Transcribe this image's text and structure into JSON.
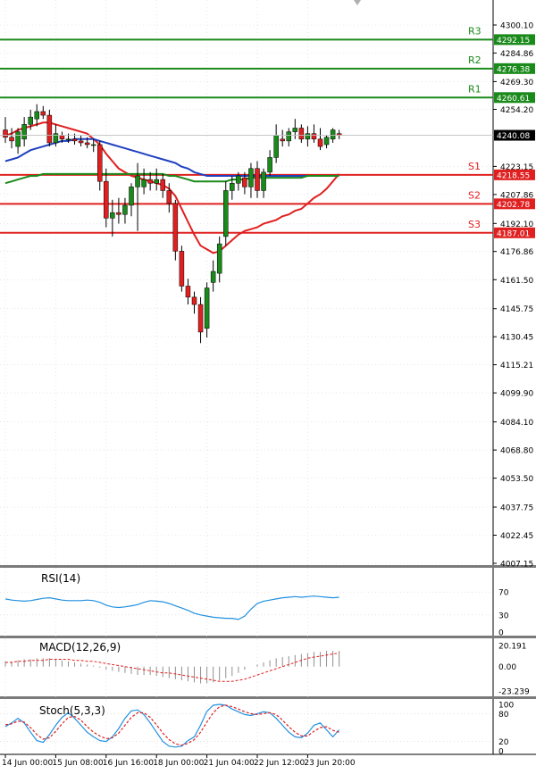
{
  "chart_data": [
    {
      "type": "candlestick",
      "timeframe_note": "",
      "price_axis": {
        "ticks": [
          "4300.10",
          "4284.86",
          "4269.30",
          "4254.20",
          "4223.15",
          "4207.86",
          "4192.10",
          "4176.86",
          "4161.50",
          "4145.75",
          "4130.45",
          "4115.21",
          "4099.90",
          "4084.10",
          "4068.80",
          "4053.50",
          "4037.75",
          "4022.45",
          "4007.15"
        ],
        "tick_values": [
          4300.1,
          4284.86,
          4269.3,
          4254.2,
          4223.15,
          4207.86,
          4192.1,
          4176.86,
          4161.5,
          4145.75,
          4130.45,
          4115.21,
          4099.9,
          4084.1,
          4068.8,
          4053.5,
          4037.75,
          4022.45,
          4007.15
        ],
        "range": [
          4007.15,
          4300.1
        ],
        "current_price": "4240.08",
        "current_value": 4240.08
      },
      "levels": [
        {
          "name": "R3",
          "value": 4292.15,
          "label": "4292.15",
          "color": "#1a8a1a"
        },
        {
          "name": "R2",
          "value": 4276.38,
          "label": "4276.38",
          "color": "#1a8a1a"
        },
        {
          "name": "R1",
          "value": 4260.61,
          "label": "4260.61",
          "color": "#1a8a1a"
        },
        {
          "name": "S1",
          "value": 4218.55,
          "label": "4218.55",
          "color": "#e02020"
        },
        {
          "name": "S2",
          "value": 4202.78,
          "label": "4202.78",
          "color": "#e02020"
        },
        {
          "name": "S3",
          "value": 4187.01,
          "label": "4187.01",
          "color": "#e02020"
        }
      ],
      "candles": [
        {
          "o": 4243,
          "h": 4250,
          "l": 4236,
          "c": 4239
        },
        {
          "o": 4239,
          "h": 4244,
          "l": 4233,
          "c": 4237
        },
        {
          "o": 4234,
          "h": 4244,
          "l": 4230,
          "c": 4242
        },
        {
          "o": 4238,
          "h": 4250,
          "l": 4234,
          "c": 4246
        },
        {
          "o": 4246,
          "h": 4254,
          "l": 4243,
          "c": 4250
        },
        {
          "o": 4249,
          "h": 4257,
          "l": 4245,
          "c": 4253
        },
        {
          "o": 4253,
          "h": 4256,
          "l": 4249,
          "c": 4251
        },
        {
          "o": 4251,
          "h": 4254,
          "l": 4234,
          "c": 4236
        },
        {
          "o": 4236,
          "h": 4246,
          "l": 4234,
          "c": 4241
        },
        {
          "o": 4240,
          "h": 4242,
          "l": 4236,
          "c": 4238
        },
        {
          "o": 4238,
          "h": 4241,
          "l": 4236,
          "c": 4238
        },
        {
          "o": 4238,
          "h": 4241,
          "l": 4235,
          "c": 4237
        },
        {
          "o": 4237,
          "h": 4240,
          "l": 4234,
          "c": 4236
        },
        {
          "o": 4236,
          "h": 4239,
          "l": 4233,
          "c": 4235
        },
        {
          "o": 4235,
          "h": 4238,
          "l": 4231,
          "c": 4235
        },
        {
          "o": 4235,
          "h": 4237,
          "l": 4210,
          "c": 4215
        },
        {
          "o": 4215,
          "h": 4222,
          "l": 4190,
          "c": 4195
        },
        {
          "o": 4195,
          "h": 4205,
          "l": 4185,
          "c": 4198
        },
        {
          "o": 4198,
          "h": 4206,
          "l": 4192,
          "c": 4197
        },
        {
          "o": 4197,
          "h": 4206,
          "l": 4192,
          "c": 4202
        },
        {
          "o": 4202,
          "h": 4214,
          "l": 4196,
          "c": 4212
        },
        {
          "o": 4212,
          "h": 4225,
          "l": 4188,
          "c": 4218
        },
        {
          "o": 4212,
          "h": 4222,
          "l": 4208,
          "c": 4216
        },
        {
          "o": 4216,
          "h": 4220,
          "l": 4210,
          "c": 4214
        },
        {
          "o": 4214,
          "h": 4222,
          "l": 4210,
          "c": 4216
        },
        {
          "o": 4216,
          "h": 4219,
          "l": 4206,
          "c": 4210
        },
        {
          "o": 4210,
          "h": 4214,
          "l": 4198,
          "c": 4203
        },
        {
          "o": 4203,
          "h": 4205,
          "l": 4172,
          "c": 4177
        },
        {
          "o": 4177,
          "h": 4180,
          "l": 4155,
          "c": 4158
        },
        {
          "o": 4158,
          "h": 4162,
          "l": 4148,
          "c": 4152
        },
        {
          "o": 4152,
          "h": 4155,
          "l": 4143,
          "c": 4148
        },
        {
          "o": 4148,
          "h": 4152,
          "l": 4127,
          "c": 4133
        },
        {
          "o": 4135,
          "h": 4160,
          "l": 4130,
          "c": 4157
        },
        {
          "o": 4160,
          "h": 4172,
          "l": 4155,
          "c": 4166
        },
        {
          "o": 4165,
          "h": 4185,
          "l": 4160,
          "c": 4181
        },
        {
          "o": 4185,
          "h": 4215,
          "l": 4180,
          "c": 4210
        },
        {
          "o": 4210,
          "h": 4218,
          "l": 4205,
          "c": 4214
        },
        {
          "o": 4214,
          "h": 4220,
          "l": 4210,
          "c": 4218
        },
        {
          "o": 4217,
          "h": 4220,
          "l": 4208,
          "c": 4212
        },
        {
          "o": 4212,
          "h": 4225,
          "l": 4206,
          "c": 4222
        },
        {
          "o": 4222,
          "h": 4226,
          "l": 4206,
          "c": 4210
        },
        {
          "o": 4210,
          "h": 4222,
          "l": 4206,
          "c": 4220
        },
        {
          "o": 4220,
          "h": 4232,
          "l": 4218,
          "c": 4228
        },
        {
          "o": 4228,
          "h": 4246,
          "l": 4225,
          "c": 4240
        },
        {
          "o": 4238,
          "h": 4243,
          "l": 4234,
          "c": 4237
        },
        {
          "o": 4237,
          "h": 4244,
          "l": 4234,
          "c": 4242
        },
        {
          "o": 4242,
          "h": 4249,
          "l": 4238,
          "c": 4244
        },
        {
          "o": 4244,
          "h": 4246,
          "l": 4236,
          "c": 4238
        },
        {
          "o": 4238,
          "h": 4245,
          "l": 4234,
          "c": 4241
        },
        {
          "o": 4241,
          "h": 4246,
          "l": 4236,
          "c": 4238
        },
        {
          "o": 4238,
          "h": 4244,
          "l": 4232,
          "c": 4234
        },
        {
          "o": 4235,
          "h": 4240,
          "l": 4233,
          "c": 4239
        },
        {
          "o": 4238,
          "h": 4244,
          "l": 4236,
          "c": 4243
        },
        {
          "o": 4241,
          "h": 4243,
          "l": 4238,
          "c": 4240
        }
      ],
      "moving_averages": [
        {
          "color": "#e02020",
          "values": [
            4240,
            4241,
            4243,
            4244,
            4245,
            4246,
            4247,
            4247,
            4246,
            4245,
            4244,
            4243,
            4242,
            4241,
            4238,
            4235,
            4230,
            4226,
            4222,
            4220,
            4218,
            4217,
            4216,
            4215,
            4214,
            4213,
            4211,
            4207,
            4200,
            4193,
            4186,
            4180,
            4178,
            4176,
            4177,
            4180,
            4183,
            4186,
            4188,
            4189,
            4190,
            4192,
            4193,
            4194,
            4196,
            4197,
            4199,
            4200,
            4203,
            4206,
            4208,
            4211,
            4215,
            4219
          ]
        },
        {
          "color": "#2040c0",
          "values": [
            4226,
            4227,
            4228,
            4230,
            4232,
            4233,
            4234,
            4235,
            4236,
            4237,
            4237,
            4238,
            4238,
            4238,
            4238,
            4237,
            4236,
            4235,
            4234,
            4233,
            4232,
            4231,
            4230,
            4229,
            4228,
            4227,
            4226,
            4225,
            4223,
            4222,
            4220,
            4219,
            4218,
            4218,
            4218,
            4218,
            4218,
            4218,
            4218,
            4218,
            4218,
            4218,
            4218,
            4218,
            4218,
            4218,
            4218,
            4218,
            4218,
            4218,
            4218,
            4218,
            4218,
            4218
          ]
        },
        {
          "color": "#1a8a1a",
          "values": [
            4214,
            4215,
            4216,
            4217,
            4218,
            4218,
            4219,
            4219,
            4219,
            4219,
            4219,
            4219,
            4219,
            4219,
            4219,
            4219,
            4219,
            4219,
            4219,
            4219,
            4219,
            4219,
            4219,
            4219,
            4219,
            4219,
            4218,
            4218,
            4217,
            4216,
            4215,
            4215,
            4215,
            4215,
            4215,
            4215,
            4216,
            4216,
            4216,
            4217,
            4217,
            4217,
            4217,
            4217,
            4217,
            4217,
            4217,
            4217,
            4218,
            4218,
            4218,
            4218,
            4218,
            4218
          ]
        }
      ],
      "x_labels": [
        "14 Jun 00:00",
        "15 Jun 08:00",
        "16 Jun 16:00",
        "18 Jun 00:00",
        "21 Jun 04:00",
        "22 Jun 12:00",
        "23 Jun 20:00"
      ],
      "x_label_index": [
        0,
        8,
        16,
        24,
        32,
        40,
        48
      ]
    },
    {
      "type": "line",
      "title": "RSI(14)",
      "ticks": [
        "70",
        "30",
        "0"
      ],
      "tick_values": [
        70,
        30,
        0
      ],
      "ylim": [
        0,
        100
      ],
      "values": [
        58,
        56,
        55,
        54,
        55,
        57,
        59,
        60,
        58,
        56,
        55,
        55,
        55,
        56,
        55,
        52,
        47,
        44,
        43,
        44,
        46,
        48,
        52,
        55,
        54,
        53,
        50,
        46,
        42,
        38,
        33,
        30,
        28,
        26,
        25,
        24,
        24,
        22,
        28,
        40,
        50,
        54,
        56,
        58,
        60,
        61,
        62,
        61,
        62,
        63,
        62,
        61,
        60,
        61
      ],
      "color": "#2090e0"
    },
    {
      "type": "bar",
      "title": "MACD(12,26,9)",
      "ticks": [
        "20.191",
        "0.00",
        "-23.239"
      ],
      "tick_values": [
        20.191,
        0.0,
        -23.239
      ],
      "ylim": [
        -23.239,
        20.191
      ],
      "histogram": [
        5,
        5,
        6,
        7,
        7,
        8,
        8,
        8,
        7,
        6,
        5,
        4,
        3,
        2,
        1,
        -1,
        -3,
        -4,
        -5,
        -6,
        -7,
        -8,
        -8,
        -8,
        -9,
        -10,
        -11,
        -12,
        -13,
        -14,
        -15,
        -16,
        -16,
        -15,
        -13,
        -11,
        -9,
        -6,
        -3,
        0,
        2,
        4,
        6,
        8,
        9,
        10,
        11,
        12,
        13,
        14,
        14,
        15,
        15,
        15
      ],
      "signal": [
        4,
        4,
        5,
        5,
        6,
        6,
        6,
        7,
        7,
        7,
        7,
        6,
        6,
        5,
        5,
        4,
        3,
        2,
        1,
        0,
        -1,
        -2,
        -3,
        -4,
        -5,
        -6,
        -6,
        -7,
        -8,
        -9,
        -10,
        -11,
        -12,
        -13,
        -14,
        -14,
        -14,
        -13,
        -12,
        -10,
        -8,
        -6,
        -4,
        -2,
        0,
        2,
        4,
        6,
        8,
        9,
        10,
        11,
        12,
        13
      ],
      "hist_color": "#909090",
      "signal_color": "#e02020"
    },
    {
      "type": "line",
      "title": "Stoch(5,3,3)",
      "ticks": [
        "100",
        "80",
        "20",
        "0"
      ],
      "tick_values": [
        100,
        80,
        20,
        0
      ],
      "ylim": [
        0,
        100
      ],
      "series": [
        {
          "values": [
            52,
            60,
            70,
            60,
            40,
            22,
            18,
            35,
            55,
            72,
            82,
            70,
            55,
            40,
            30,
            22,
            20,
            30,
            48,
            70,
            86,
            88,
            78,
            60,
            40,
            20,
            10,
            8,
            10,
            22,
            30,
            55,
            85,
            98,
            100,
            98,
            90,
            84,
            78,
            76,
            80,
            84,
            82,
            70,
            55,
            40,
            30,
            28,
            38,
            55,
            60,
            45,
            30,
            45
          ],
          "color": "#2090e0"
        },
        {
          "values": [
            56,
            58,
            64,
            62,
            50,
            35,
            25,
            28,
            42,
            58,
            72,
            74,
            66,
            52,
            40,
            32,
            26,
            28,
            38,
            55,
            72,
            82,
            82,
            72,
            56,
            38,
            24,
            15,
            12,
            16,
            24,
            40,
            62,
            82,
            95,
            98,
            95,
            90,
            84,
            80,
            78,
            80,
            82,
            78,
            66,
            52,
            40,
            32,
            32,
            42,
            50,
            52,
            44,
            40
          ],
          "color": "#e02020"
        }
      ]
    }
  ]
}
